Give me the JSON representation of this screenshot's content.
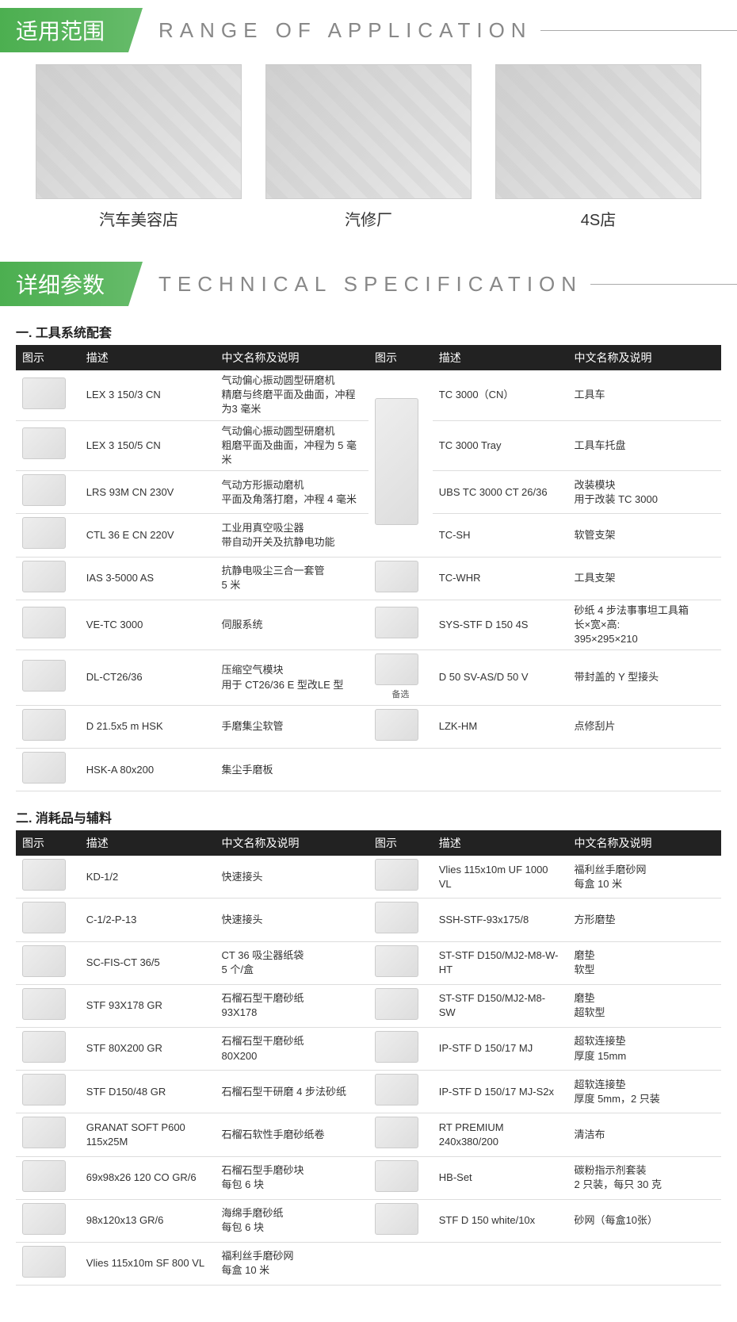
{
  "sections": {
    "range": {
      "tab": "适用范围",
      "title": "RANGE OF APPLICATION"
    },
    "spec": {
      "tab": "详细参数",
      "title": "TECHNICAL SPECIFICATION"
    }
  },
  "applications": [
    {
      "label": "汽车美容店"
    },
    {
      "label": "汽修厂"
    },
    {
      "label": "4S店"
    }
  ],
  "spec1": {
    "title": "一. 工具系统配套",
    "headers": {
      "icon": "图示",
      "desc": "描述",
      "name": "中文名称及说明",
      "icon2": "图示",
      "desc2": "描述",
      "name2": "中文名称及说明"
    },
    "rows": [
      {
        "desc": "LEX 3 150/3 CN",
        "name": "气动偏心振动圆型研磨机\n精磨与终磨平面及曲面，冲程为3 毫米",
        "desc2": "TC 3000（CN）",
        "name2": "工具车"
      },
      {
        "desc": "LEX 3 150/5 CN",
        "name": "气动偏心振动圆型研磨机\n粗磨平面及曲面，冲程为 5 毫米",
        "desc2": "TC 3000 Tray",
        "name2": "工具车托盘"
      },
      {
        "desc": "LRS 93M CN 230V",
        "name": "气动方形振动磨机\n平面及角落打磨，冲程 4 毫米",
        "desc2": "UBS TC 3000 CT 26/36",
        "name2": "改装模块\n用于改装 TC 3000"
      },
      {
        "desc": "CTL 36 E CN 220V",
        "name": "工业用真空吸尘器\n带自动开关及抗静电功能",
        "desc2": "TC-SH",
        "name2": "软管支架"
      },
      {
        "desc": "IAS 3-5000 AS",
        "name": "抗静电吸尘三合一套管\n5 米",
        "desc2": "TC-WHR",
        "name2": "工具支架"
      },
      {
        "desc": "VE-TC 3000",
        "name": "伺服系统",
        "desc2": "SYS-STF D 150 4S",
        "name2": "砂纸 4 步法事事坦工具箱\n长×宽×高:\n395×295×210"
      },
      {
        "desc": "DL-CT26/36",
        "name": "压缩空气模块\n用于 CT26/36 E 型改LE 型",
        "desc2": "D 50 SV-AS/D 50 V",
        "name2": "带封盖的 Y 型接头",
        "note2": "备选"
      },
      {
        "desc": "D 21.5x5 m HSK",
        "name": "手磨集尘软管",
        "desc2": "LZK-HM",
        "name2": "点修刮片"
      },
      {
        "desc": "HSK-A 80x200",
        "name": "集尘手磨板",
        "desc2": "",
        "name2": ""
      }
    ]
  },
  "spec2": {
    "title": "二. 消耗品与辅料",
    "headers": {
      "icon": "图示",
      "desc": "描述",
      "name": "中文名称及说明",
      "icon2": "图示",
      "desc2": "描述",
      "name2": "中文名称及说明"
    },
    "rows": [
      {
        "desc": "KD-1/2",
        "name": "快速接头",
        "desc2": "Vlies 115x10m UF 1000 VL",
        "name2": "福利丝手磨砂网\n每盒 10 米"
      },
      {
        "desc": "C-1/2-P-13",
        "name": "快速接头",
        "desc2": "SSH-STF-93x175/8",
        "name2": "方形磨垫"
      },
      {
        "desc": "SC-FIS-CT 36/5",
        "name": "CT 36 吸尘器纸袋\n5 个/盒",
        "desc2": "ST-STF D150/MJ2-M8-W-HT",
        "name2": "磨垫\n软型"
      },
      {
        "desc": "STF 93X178 GR",
        "name": "石榴石型干磨砂纸\n93X178",
        "desc2": "ST-STF D150/MJ2-M8-SW",
        "name2": "磨垫\n超软型"
      },
      {
        "desc": "STF 80X200 GR",
        "name": "石榴石型干磨砂纸\n80X200",
        "desc2": "IP-STF D 150/17 MJ",
        "name2": "超软连接垫\n厚度 15mm"
      },
      {
        "desc": "STF D150/48 GR",
        "name": "石榴石型干研磨 4 步法砂纸",
        "desc2": "IP-STF D 150/17 MJ-S2x",
        "name2": "超软连接垫\n厚度 5mm，2 只装"
      },
      {
        "desc": "GRANAT SOFT P600 115x25M",
        "name": "石榴石软性手磨砂纸卷",
        "desc2": "RT PREMIUM 240x380/200",
        "name2": "清洁布"
      },
      {
        "desc": "69x98x26 120 CO GR/6",
        "name": "石榴石型手磨砂块\n每包 6 块",
        "desc2": "HB-Set",
        "name2": "碳粉指示剂套装\n2 只装，每只 30 克"
      },
      {
        "desc": "98x120x13 GR/6",
        "name": "海绵手磨砂纸\n每包 6 块",
        "desc2": "STF D 150 white/10x",
        "name2": "砂网（每盒10张）"
      },
      {
        "desc": "Vlies 115x10m SF 800 VL",
        "name": "福利丝手磨砂网\n每盒 10 米",
        "desc2": "",
        "name2": ""
      }
    ]
  },
  "colors": {
    "green": "#4CAF50",
    "header_bg": "#222222",
    "text": "#333333",
    "muted": "#888888"
  }
}
